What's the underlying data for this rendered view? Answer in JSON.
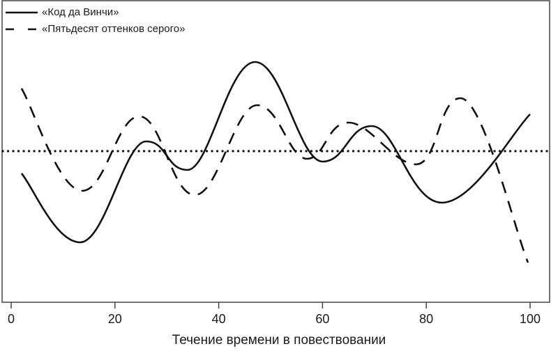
{
  "chart_data": {
    "type": "line",
    "title": "",
    "xlabel": "Течение времени в повествовании",
    "ylabel": "",
    "xlim": [
      0,
      100
    ],
    "ylim": [
      -20,
      22
    ],
    "xticks": [
      0,
      20,
      40,
      60,
      80,
      100
    ],
    "yticks": [],
    "grid": false,
    "legend_position": "top-left",
    "baseline": {
      "y": 0,
      "style": "dotted"
    },
    "series": [
      {
        "name": "«Код да Винчи»",
        "style": "solid",
        "x": [
          2,
          13.3,
          26,
          34,
          47,
          60,
          69.5,
          83,
          100
        ],
        "values": [
          -3.2,
          -13.1,
          1.4,
          -2.7,
          12.8,
          -1.5,
          3.6,
          -7.4,
          5.3
        ]
      },
      {
        "name": "«Пятьдесят оттенков серого»",
        "style": "dashed",
        "x": [
          2,
          13.7,
          24.7,
          35.4,
          47.4,
          57,
          65,
          78,
          86.6,
          99.6
        ],
        "values": [
          9.0,
          -5.7,
          5.0,
          -6.3,
          6.6,
          -1.1,
          4.1,
          -1.9,
          7.6,
          -16.0
        ]
      }
    ]
  },
  "legend": {
    "items": [
      {
        "label": "«Код да Винчи»"
      },
      {
        "label": "«Пятьдесят оттенков серого»"
      }
    ]
  },
  "axis": {
    "xlabel": "Течение времени в повествовании",
    "ticks": [
      "0",
      "20",
      "40",
      "60",
      "80",
      "100"
    ]
  }
}
